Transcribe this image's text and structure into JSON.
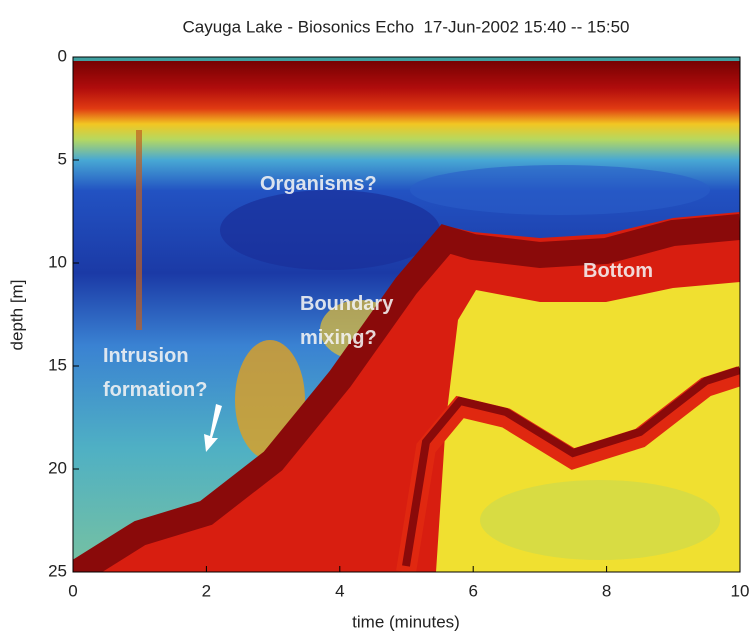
{
  "chart_data": {
    "type": "echogram",
    "title": "Cayuga Lake - Biosonics Echo  17-Jun-2002 15:40 -- 15:50",
    "x_label": "time (minutes)",
    "y_label": "depth [m]",
    "xlim": [
      0,
      10
    ],
    "xticks": [
      0,
      2,
      4,
      6,
      8,
      10
    ],
    "ylim": [
      25,
      0
    ],
    "yticks": [
      0,
      5,
      10,
      15,
      20,
      25
    ],
    "annotations": [
      [
        "Organisms?"
      ],
      [
        "Boundary",
        "mixing?"
      ],
      [
        "Intrusion",
        "formation?"
      ],
      [
        "Bottom"
      ]
    ]
  }
}
